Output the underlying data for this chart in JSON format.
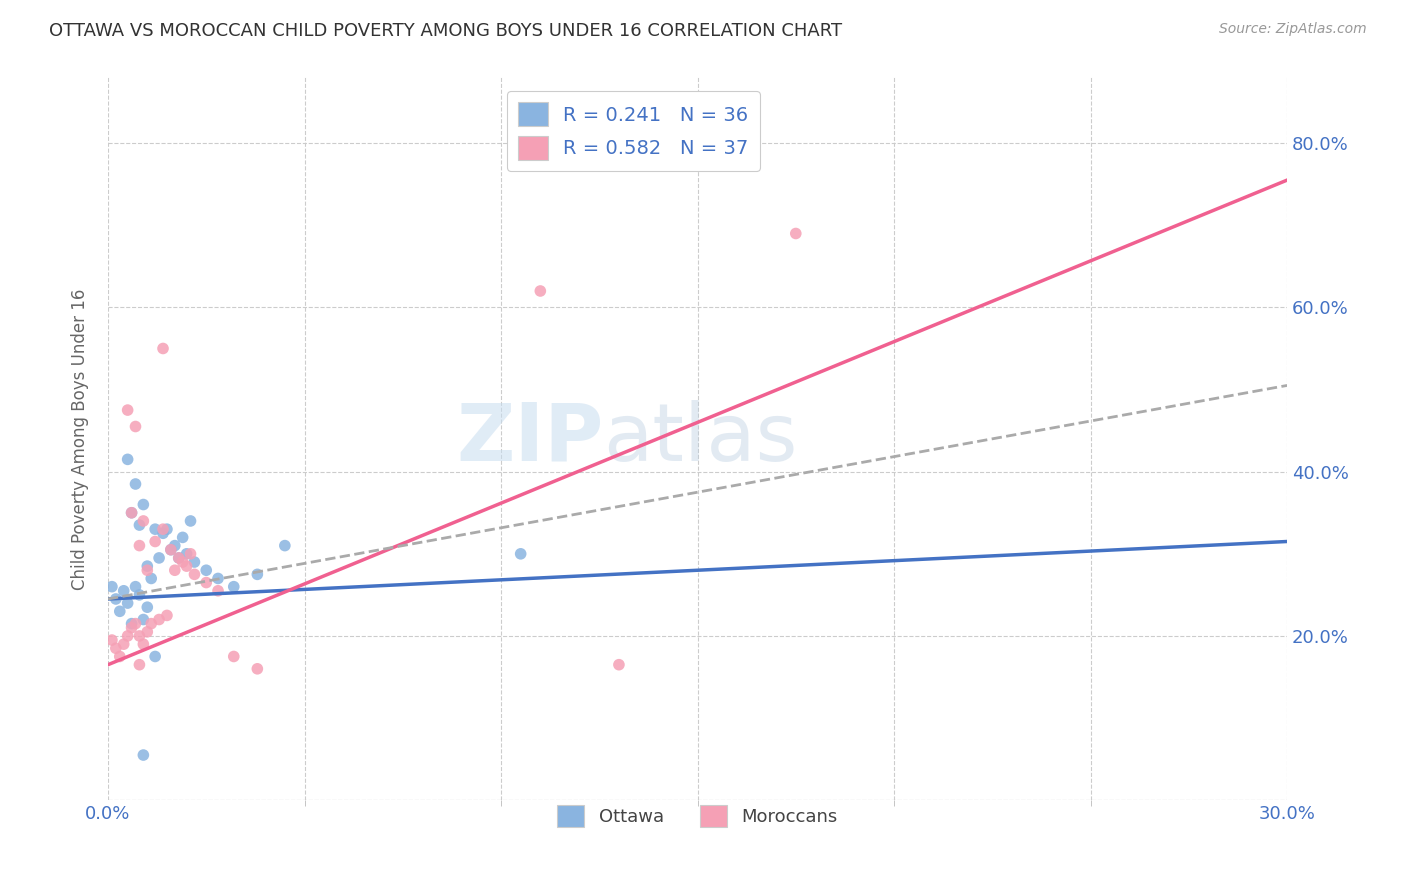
{
  "title": "OTTAWA VS MOROCCAN CHILD POVERTY AMONG BOYS UNDER 16 CORRELATION CHART",
  "source": "Source: ZipAtlas.com",
  "ylabel": "Child Poverty Among Boys Under 16",
  "xlim": [
    0.0,
    0.3
  ],
  "ylim": [
    0.0,
    0.88
  ],
  "xtick_labeled": [
    0.0,
    0.3
  ],
  "xtick_minor": [
    0.05,
    0.1,
    0.15,
    0.2,
    0.25
  ],
  "ytick_right": [
    0.2,
    0.4,
    0.6,
    0.8
  ],
  "ottawa_color": "#8ab4e0",
  "moroccan_color": "#f5a0b5",
  "ottawa_line_color": "#4472c4",
  "moroccan_line_color": "#f06090",
  "dashed_line_color": "#aaaaaa",
  "tick_color": "#4472c4",
  "R_ottawa": 0.241,
  "N_ottawa": 36,
  "R_moroccan": 0.582,
  "N_moroccan": 37,
  "watermark_zip": "ZIP",
  "watermark_atlas": "atlas",
  "legend_label_ottawa": "Ottawa",
  "legend_label_moroccan": "Moroccans",
  "ottawa_x": [
    0.001,
    0.002,
    0.003,
    0.004,
    0.005,
    0.006,
    0.007,
    0.008,
    0.009,
    0.01,
    0.011,
    0.013,
    0.015,
    0.017,
    0.019,
    0.021,
    0.005,
    0.007,
    0.009,
    0.012,
    0.014,
    0.016,
    0.018,
    0.02,
    0.006,
    0.008,
    0.01,
    0.022,
    0.025,
    0.028,
    0.032,
    0.038,
    0.045,
    0.105,
    0.012,
    0.009
  ],
  "ottawa_y": [
    0.26,
    0.245,
    0.23,
    0.255,
    0.24,
    0.215,
    0.26,
    0.25,
    0.22,
    0.235,
    0.27,
    0.295,
    0.33,
    0.31,
    0.32,
    0.34,
    0.415,
    0.385,
    0.36,
    0.33,
    0.325,
    0.305,
    0.295,
    0.3,
    0.35,
    0.335,
    0.285,
    0.29,
    0.28,
    0.27,
    0.26,
    0.275,
    0.31,
    0.3,
    0.175,
    0.055
  ],
  "moroccan_x": [
    0.001,
    0.002,
    0.003,
    0.004,
    0.005,
    0.006,
    0.007,
    0.008,
    0.009,
    0.01,
    0.011,
    0.013,
    0.015,
    0.017,
    0.019,
    0.021,
    0.005,
    0.007,
    0.009,
    0.012,
    0.014,
    0.016,
    0.018,
    0.02,
    0.006,
    0.008,
    0.01,
    0.022,
    0.025,
    0.028,
    0.032,
    0.038,
    0.11,
    0.175,
    0.014,
    0.008,
    0.13
  ],
  "moroccan_y": [
    0.195,
    0.185,
    0.175,
    0.19,
    0.2,
    0.21,
    0.215,
    0.2,
    0.19,
    0.205,
    0.215,
    0.22,
    0.225,
    0.28,
    0.29,
    0.3,
    0.475,
    0.455,
    0.34,
    0.315,
    0.33,
    0.305,
    0.295,
    0.285,
    0.35,
    0.31,
    0.28,
    0.275,
    0.265,
    0.255,
    0.175,
    0.16,
    0.62,
    0.69,
    0.55,
    0.165,
    0.165
  ],
  "ottawa_line_x": [
    0.0,
    0.3
  ],
  "ottawa_line_y": [
    0.245,
    0.315
  ],
  "moroccan_line_x": [
    0.0,
    0.3
  ],
  "moroccan_line_y": [
    0.165,
    0.755
  ],
  "dashed_line_x": [
    0.0,
    0.3
  ],
  "dashed_line_y": [
    0.245,
    0.505
  ]
}
